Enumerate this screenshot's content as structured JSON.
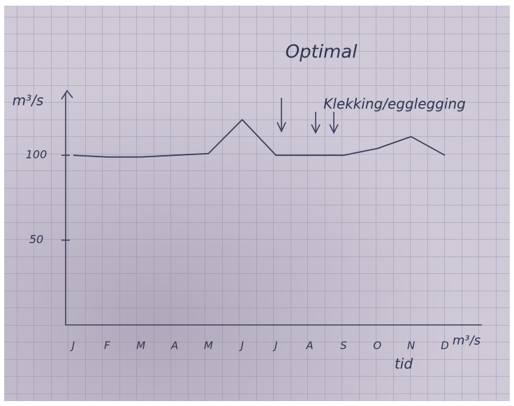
{
  "chart_data": {
    "type": "line",
    "title": "Optimal",
    "annotation": "Klekking/egglegging",
    "y_label": "m³/s",
    "x_label": "tid",
    "x_unit_label": "m³/s",
    "categories": [
      "J",
      "F",
      "M",
      "A",
      "M",
      "J",
      "J",
      "A",
      "S",
      "O",
      "N",
      "D"
    ],
    "series": [
      {
        "name": "Optimal",
        "color": "#3a3f5c",
        "values": [
          100,
          99,
          99,
          100,
          101,
          121,
          100,
          100,
          100,
          104,
          111,
          100
        ]
      }
    ],
    "ylim": [
      0,
      138
    ],
    "yticks": [
      50,
      100
    ],
    "grid": true
  }
}
